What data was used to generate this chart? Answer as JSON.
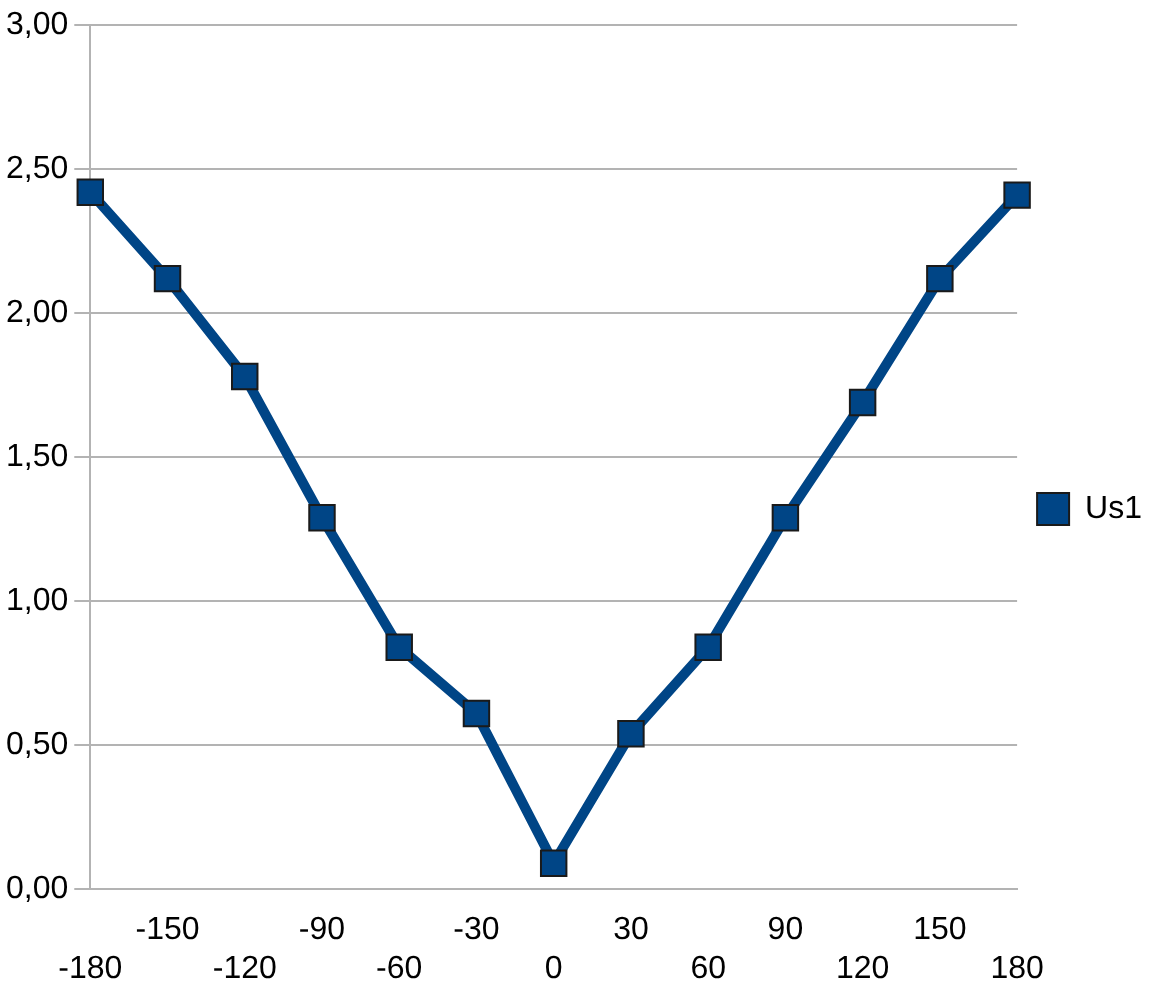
{
  "chart_data": {
    "type": "line",
    "categories": [
      "-180",
      "-150",
      "-120",
      "-90",
      "-60",
      "-30",
      "0",
      "30",
      "60",
      "90",
      "120",
      "150",
      "180"
    ],
    "series": [
      {
        "name": "Us1",
        "color": "#004586",
        "values": [
          2.42,
          2.12,
          1.78,
          1.29,
          0.84,
          0.61,
          0.09,
          0.54,
          0.84,
          1.29,
          1.69,
          2.12,
          2.41
        ]
      }
    ],
    "ylim": [
      0,
      3
    ],
    "yticks": [
      {
        "value": 0,
        "label": "0,00"
      },
      {
        "value": 0.5,
        "label": "0,50"
      },
      {
        "value": 1,
        "label": "1,00"
      },
      {
        "value": 1.5,
        "label": "1,50"
      },
      {
        "value": 2,
        "label": "2,00"
      },
      {
        "value": 2.5,
        "label": "2,50"
      },
      {
        "value": 3,
        "label": "3,00"
      }
    ],
    "grid": "y",
    "legend": "right",
    "marker": "square",
    "line_style": "solid"
  }
}
